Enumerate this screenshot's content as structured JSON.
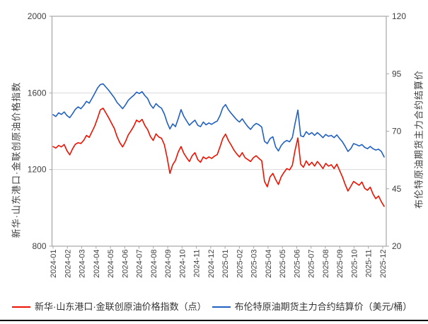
{
  "colors": {
    "background": "#ffffff",
    "frame": "#a6a6a6",
    "gridline": "#d9d9d9",
    "tick_text": "#404040",
    "bottom_rule": "#000000",
    "index_red": "#ee1100",
    "brent_blue": "#2060c0"
  },
  "chart_data": {
    "type": "line",
    "title": "",
    "legend_position": "bottom",
    "grid": "horizontal-primary-only",
    "x_start": "2024-01",
    "x_end": "2025-12",
    "x_sampling": "series points evenly spaced, approx 5 per month",
    "x_tick_labels": [
      "2024-01",
      "2024-02",
      "2024-03",
      "2024-04",
      "2024-05",
      "2024-06",
      "2024-07",
      "2024-08",
      "2024-09",
      "2024-10",
      "2024-11",
      "2024-12",
      "2025-01",
      "2025-02",
      "2025-03",
      "2025-04",
      "2025-05",
      "2025-06",
      "2025-07",
      "2025-08",
      "2025-09",
      "2025-10",
      "2025-11",
      "2025-12"
    ],
    "left_axis": {
      "title": "新华·山东港口·金联创原油价格指数",
      "range": [
        800,
        2000
      ],
      "ticks": [
        2000,
        1600,
        1200,
        800
      ],
      "grid_values": [
        1600,
        1200
      ]
    },
    "right_axis": {
      "title": "布伦特原油期货主力合约结算价",
      "range": [
        20,
        120
      ],
      "ticks": [
        120,
        95,
        70,
        45,
        20
      ],
      "grid_values": []
    },
    "series": [
      {
        "name": "新华·山东港口·金联创原油价格指数（点）",
        "axis": "left",
        "color": "#ee1100",
        "values": [
          1320,
          1312,
          1326,
          1318,
          1331,
          1298,
          1277,
          1308,
          1332,
          1340,
          1336,
          1352,
          1378,
          1368,
          1398,
          1428,
          1468,
          1512,
          1520,
          1495,
          1470,
          1442,
          1415,
          1372,
          1340,
          1318,
          1345,
          1380,
          1402,
          1426,
          1458,
          1448,
          1462,
          1430,
          1408,
          1372,
          1352,
          1386,
          1370,
          1363,
          1330,
          1262,
          1180,
          1225,
          1248,
          1292,
          1320,
          1285,
          1262,
          1242,
          1272,
          1288,
          1252,
          1238,
          1266,
          1256,
          1266,
          1258,
          1270,
          1278,
          1318,
          1362,
          1385,
          1352,
          1328,
          1302,
          1282,
          1266,
          1288,
          1262,
          1252,
          1242,
          1262,
          1272,
          1258,
          1246,
          1138,
          1110,
          1162,
          1180,
          1148,
          1122,
          1162,
          1185,
          1205,
          1198,
          1222,
          1302,
          1365,
          1228,
          1212,
          1245,
          1222,
          1238,
          1218,
          1242,
          1225,
          1205,
          1232,
          1218,
          1225,
          1205,
          1228,
          1195,
          1162,
          1122,
          1088,
          1112,
          1138,
          1128,
          1118,
          1135,
          1102,
          1092,
          1108,
          1072,
          1048,
          1062,
          1032,
          1008
        ]
      },
      {
        "name": "布伦特原油期货主力合约结算价（美元/桶）",
        "axis": "right",
        "color": "#2060c0",
        "values": [
          77.2,
          76.4,
          78.0,
          77.3,
          78.4,
          76.8,
          75.9,
          77.6,
          79.5,
          80.6,
          79.8,
          81.2,
          83.0,
          82.2,
          84.3,
          86.5,
          88.8,
          90.3,
          90.6,
          89.2,
          87.8,
          86.2,
          84.6,
          82.5,
          81.2,
          79.8,
          81.4,
          83.4,
          84.6,
          85.6,
          87.0,
          86.4,
          87.2,
          85.5,
          84.2,
          81.5,
          80.0,
          82.0,
          80.8,
          80.0,
          77.5,
          73.8,
          71.0,
          73.2,
          72.0,
          75.5,
          79.4,
          76.5,
          74.5,
          72.6,
          73.8,
          74.8,
          72.6,
          72.0,
          74.0,
          72.8,
          73.6,
          73.0,
          73.8,
          74.4,
          76.8,
          80.2,
          81.6,
          79.4,
          77.8,
          76.4,
          75.0,
          74.0,
          75.4,
          73.6,
          72.0,
          70.8,
          72.4,
          73.4,
          72.8,
          71.8,
          65.6,
          64.6,
          66.8,
          67.6,
          63.2,
          61.4,
          63.8,
          65.2,
          66.0,
          65.4,
          67.2,
          73.5,
          79.2,
          68.0,
          67.6,
          69.8,
          68.6,
          69.4,
          68.2,
          69.4,
          68.4,
          67.2,
          68.6,
          67.8,
          68.2,
          67.2,
          68.4,
          66.8,
          65.4,
          63.4,
          61.2,
          62.4,
          64.6,
          64.2,
          63.6,
          64.2,
          63.0,
          62.4,
          63.4,
          62.4,
          61.8,
          62.2,
          61.2,
          58.8
        ]
      }
    ]
  }
}
